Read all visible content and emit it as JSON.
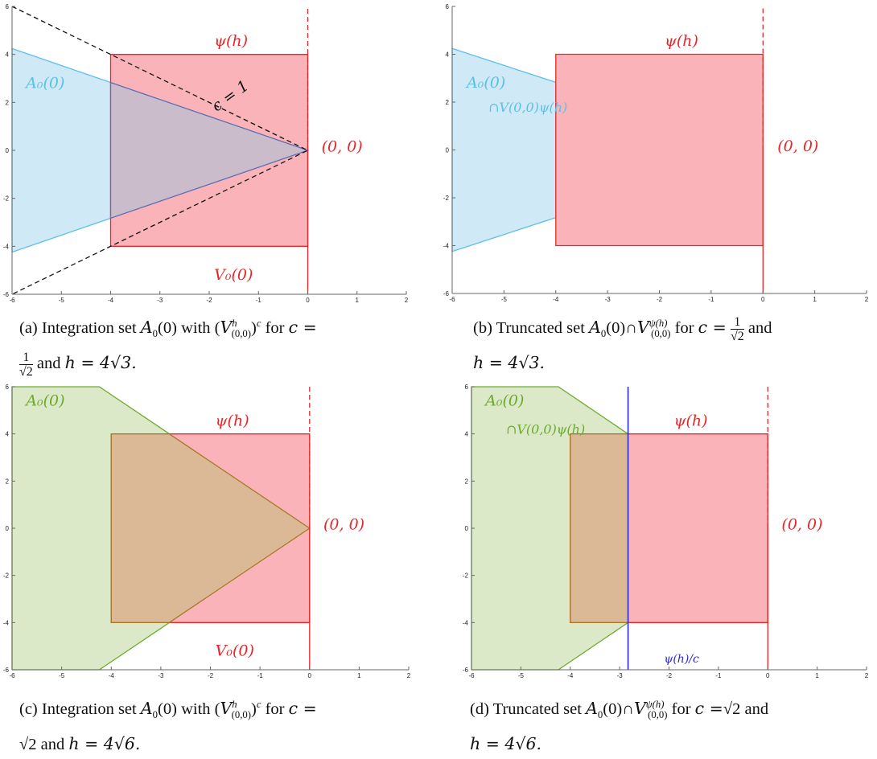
{
  "chart_data": [
    {
      "panel": "a",
      "type": "area",
      "xlim": [
        -6,
        2
      ],
      "ylim": [
        -6,
        6
      ],
      "xticks": [
        -6,
        -5,
        -4,
        -3,
        -2,
        -1,
        0,
        1,
        2
      ],
      "yticks": [
        -6,
        -4,
        -2,
        0,
        2,
        4,
        6
      ],
      "c": 0.7071,
      "h": 6.9282,
      "regions": [
        {
          "name": "A0",
          "label": "A₀(0)",
          "color": "#5bc0e6",
          "fill": "#cfe9f6",
          "points": [
            [
              -6,
              4.243
            ],
            [
              0,
              0
            ],
            [
              -6,
              -4.243
            ]
          ]
        },
        {
          "name": "V0",
          "label": "ψ(h)",
          "color": "#e8262a",
          "fill": "#fbb3ba",
          "points": [
            [
              -4,
              4
            ],
            [
              0,
              4
            ],
            [
              0,
              -4
            ],
            [
              -4,
              -4
            ]
          ]
        },
        {
          "name": "overlap",
          "color": "#5b6fb0",
          "fill": "#cbbccb",
          "points": [
            [
              -4,
              2.828
            ],
            [
              0,
              0
            ],
            [
              -4,
              -2.828
            ]
          ]
        }
      ],
      "lines": [
        {
          "name": "cone",
          "style": "dashed",
          "color": "#111",
          "points": [
            [
              -6,
              6
            ],
            [
              0,
              0
            ],
            [
              -6,
              -6
            ]
          ]
        },
        {
          "name": "axis",
          "style": "dashed",
          "color": "#e8262a",
          "points": [
            [
              0,
              0
            ],
            [
              0,
              6
            ]
          ]
        },
        {
          "name": "axis-low",
          "style": "solid",
          "color": "#e8262a",
          "points": [
            [
              0,
              0
            ],
            [
              0,
              -6
            ]
          ]
        }
      ],
      "annotations": [
        {
          "text": "A₀(0)",
          "x": -5.72,
          "y": 2.6,
          "color": "#5bc0e6"
        },
        {
          "text": "ψ(h)",
          "x": -1.9,
          "y": 4.35,
          "color": "#e8262a"
        },
        {
          "text": "c = 1",
          "x": -1.85,
          "y": 1.6,
          "color": "#111",
          "rotate": -36
        },
        {
          "text": "(0, 0)",
          "x": 0.28,
          "y": -0.05,
          "color": "#e8262a"
        },
        {
          "text": "V₀(0)",
          "x": -1.9,
          "y": -5.4,
          "color": "#e8262a"
        }
      ]
    },
    {
      "panel": "b",
      "type": "area",
      "xlim": [
        -6,
        2
      ],
      "ylim": [
        -6,
        6
      ],
      "xticks": [
        -6,
        -5,
        -4,
        -3,
        -2,
        -1,
        0,
        1,
        2
      ],
      "yticks": [
        -6,
        -4,
        -2,
        0,
        2,
        4,
        6
      ],
      "c": 0.7071,
      "h": 6.9282,
      "regions": [
        {
          "name": "A0",
          "color": "#5bc0e6",
          "fill": "#cfe9f6",
          "points": [
            [
              -6,
              4.243
            ],
            [
              -4,
              2.828
            ],
            [
              -4,
              -2.828
            ],
            [
              -6,
              -4.243
            ]
          ]
        },
        {
          "name": "V0",
          "color": "#e8262a",
          "fill": "#fbb3ba",
          "points": [
            [
              -4,
              4
            ],
            [
              0,
              4
            ],
            [
              0,
              -4
            ],
            [
              -4,
              -4
            ]
          ]
        }
      ],
      "lines": [
        {
          "name": "axis",
          "style": "dashed",
          "color": "#e8262a",
          "points": [
            [
              0,
              0
            ],
            [
              0,
              6
            ]
          ]
        },
        {
          "name": "axis-low",
          "style": "solid",
          "color": "#e8262a",
          "points": [
            [
              0,
              0
            ],
            [
              0,
              -6
            ]
          ]
        }
      ],
      "annotations": [
        {
          "text": "A₀(0)",
          "x": -5.72,
          "y": 2.6,
          "color": "#5bc0e6"
        },
        {
          "text": "∩V(0,0)ψ(h)",
          "x": -5.3,
          "y": 1.6,
          "color": "#5bc0e6"
        },
        {
          "text": "ψ(h)",
          "x": -1.9,
          "y": 4.35,
          "color": "#e8262a"
        },
        {
          "text": "(0, 0)",
          "x": 0.28,
          "y": -0.05,
          "color": "#e8262a"
        }
      ]
    },
    {
      "panel": "c",
      "type": "area",
      "xlim": [
        -6,
        2
      ],
      "ylim": [
        -6,
        6
      ],
      "xticks": [
        -6,
        -5,
        -4,
        -3,
        -2,
        -1,
        0,
        1,
        2
      ],
      "yticks": [
        -6,
        -4,
        -2,
        0,
        2,
        4,
        6
      ],
      "c": 1.4142,
      "h": 9.798,
      "regions": [
        {
          "name": "A0",
          "color": "#6eaa2c",
          "fill": "#dbe9c9",
          "points": [
            [
              -6,
              6
            ],
            [
              -4.24,
              6
            ],
            [
              0,
              0
            ],
            [
              -4.24,
              -6
            ],
            [
              -6,
              -6
            ]
          ]
        },
        {
          "name": "V0",
          "color": "#e8262a",
          "fill": "#fbb3ba",
          "points": [
            [
              -4,
              4
            ],
            [
              0,
              4
            ],
            [
              0,
              -4
            ],
            [
              -4,
              -4
            ]
          ]
        },
        {
          "name": "overlap",
          "color": "#a8782a",
          "fill": "#dbb896",
          "points": [
            [
              -4,
              4
            ],
            [
              -2.83,
              4
            ],
            [
              0,
              0
            ],
            [
              -2.83,
              -4
            ],
            [
              -4,
              -4
            ]
          ]
        }
      ],
      "lines": [
        {
          "name": "axis",
          "style": "dashed",
          "color": "#e8262a",
          "points": [
            [
              0,
              0
            ],
            [
              0,
              6
            ]
          ]
        },
        {
          "name": "axis-low",
          "style": "solid",
          "color": "#e8262a",
          "points": [
            [
              0,
              0
            ],
            [
              0,
              -6
            ]
          ]
        }
      ],
      "annotations": [
        {
          "text": "A₀(0)",
          "x": -5.72,
          "y": 5.2,
          "color": "#6eaa2c"
        },
        {
          "text": "ψ(h)",
          "x": -1.9,
          "y": 4.35,
          "color": "#e8262a"
        },
        {
          "text": "(0, 0)",
          "x": 0.28,
          "y": -0.05,
          "color": "#e8262a"
        },
        {
          "text": "V₀(0)",
          "x": -1.9,
          "y": -5.4,
          "color": "#e8262a"
        }
      ]
    },
    {
      "panel": "d",
      "type": "area",
      "xlim": [
        -6,
        2
      ],
      "ylim": [
        -6,
        6
      ],
      "xticks": [
        -6,
        -5,
        -4,
        -3,
        -2,
        -1,
        0,
        1,
        2
      ],
      "yticks": [
        -6,
        -4,
        -2,
        0,
        2,
        4,
        6
      ],
      "c": 1.4142,
      "h": 9.798,
      "regions": [
        {
          "name": "A0",
          "color": "#6eaa2c",
          "fill": "#dbe9c9",
          "points": [
            [
              -6,
              6
            ],
            [
              -4.24,
              6
            ],
            [
              -2.83,
              4
            ],
            [
              -2.83,
              -4
            ],
            [
              -4.24,
              -6
            ],
            [
              -6,
              -6
            ]
          ]
        },
        {
          "name": "V0",
          "color": "#e8262a",
          "fill": "#fbb3ba",
          "points": [
            [
              -4,
              4
            ],
            [
              0,
              4
            ],
            [
              0,
              -4
            ],
            [
              -4,
              -4
            ]
          ]
        },
        {
          "name": "overlap",
          "color": "#a8782a",
          "fill": "#dbb896",
          "points": [
            [
              -4,
              4
            ],
            [
              -2.83,
              4
            ],
            [
              -2.83,
              -4
            ],
            [
              -4,
              -4
            ]
          ]
        }
      ],
      "lines": [
        {
          "name": "axis",
          "style": "dashed",
          "color": "#e8262a",
          "points": [
            [
              0,
              0
            ],
            [
              0,
              6
            ]
          ]
        },
        {
          "name": "axis-low",
          "style": "solid",
          "color": "#e8262a",
          "points": [
            [
              0,
              0
            ],
            [
              0,
              -6
            ]
          ]
        },
        {
          "name": "psi-over-c",
          "style": "solid",
          "color": "#2a2ad0",
          "points": [
            [
              -2.83,
              6
            ],
            [
              -2.83,
              -6
            ]
          ]
        }
      ],
      "annotations": [
        {
          "text": "A₀(0)",
          "x": -5.72,
          "y": 5.2,
          "color": "#6eaa2c"
        },
        {
          "text": "∩V(0,0)ψ(h)",
          "x": -5.3,
          "y": 4.0,
          "color": "#6eaa2c"
        },
        {
          "text": "ψ(h)",
          "x": -1.9,
          "y": 4.35,
          "color": "#e8262a"
        },
        {
          "text": "(0, 0)",
          "x": 0.28,
          "y": -0.05,
          "color": "#e8262a"
        },
        {
          "text": "ψ(h)/c",
          "x": -2.1,
          "y": -5.7,
          "color": "#2a2ad0"
        }
      ]
    }
  ],
  "captions": {
    "a": {
      "label": "(a)",
      "l1": "Integration set",
      "A": "A",
      "A_sub": "0",
      "A_arg": "(0)",
      "with": "with",
      "V": "V",
      "V_sup": "h",
      "V_sub": "(0,0)",
      "c_sup": "c",
      "for": "for",
      "ceq": "c =",
      "frac_num": "1",
      "frac_den": "√2",
      "and": "and",
      "heq": "h = 4√3."
    },
    "b": {
      "label": "(b)",
      "l1": "Truncated set",
      "A": "A",
      "A_sub": "0",
      "A_arg": "(0)",
      "cap": "∩",
      "V": "V",
      "V_sup": "ψ(h)",
      "V_sub": "(0,0)",
      "for": "for",
      "ceq": "c =",
      "frac_num": "1",
      "frac_den": "√2",
      "and": "and",
      "heq": "h = 4√3."
    },
    "c": {
      "label": "(c)",
      "l1": "Integration set",
      "A": "A",
      "A_sub": "0",
      "A_arg": "(0)",
      "with": "with",
      "V": "V",
      "V_sup": "h",
      "V_sub": "(0,0)",
      "c_sup": "c",
      "for": "for",
      "ceq": "c =",
      "cval": "√2",
      "and": "and",
      "heq": "h = 4√6."
    },
    "d": {
      "label": "(d)",
      "l1": "Truncated set",
      "A": "A",
      "A_sub": "0",
      "A_arg": "(0)",
      "cap": "∩",
      "V": "V",
      "V_sup": "ψ(h)",
      "V_sub": "(0,0)",
      "for": "for",
      "ceq": "c =",
      "cval": "√2",
      "and": "and",
      "heq": "h = 4√6."
    }
  }
}
